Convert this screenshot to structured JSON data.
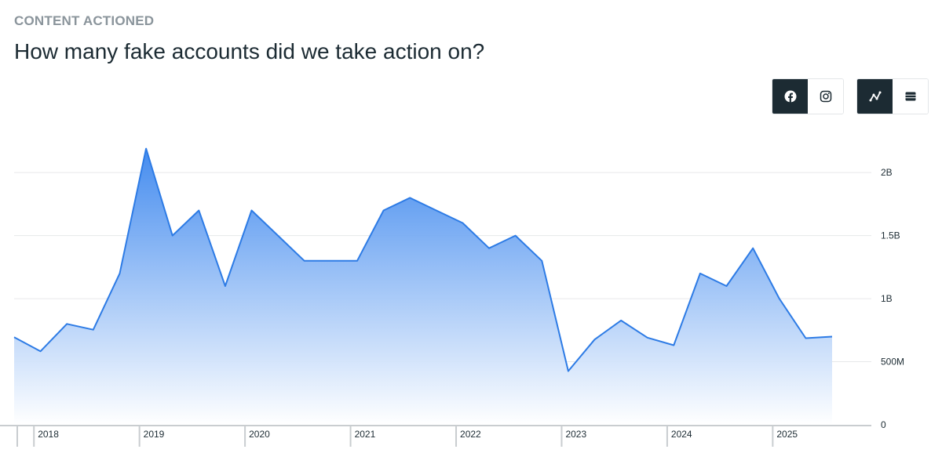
{
  "header": {
    "eyebrow": "CONTENT ACTIONED",
    "title": "How many fake accounts did we take action on?"
  },
  "controls": {
    "platform": [
      {
        "icon": "facebook-icon",
        "active": true
      },
      {
        "icon": "instagram-icon",
        "active": false
      }
    ],
    "view": [
      {
        "icon": "line-chart-icon",
        "active": true
      },
      {
        "icon": "table-icon",
        "active": false
      }
    ]
  },
  "colors": {
    "line": "#2d7be5",
    "fill_top": "#3b86ee",
    "fill_bottom": "#ffffff",
    "active_button": "#1c2b33",
    "grid": "#e6e8ea"
  },
  "chart_data": {
    "type": "area",
    "title": "",
    "xlabel": "",
    "ylabel": "",
    "x": [
      "2017 Q4",
      "2018 Q1",
      "2018 Q2",
      "2018 Q3",
      "2018 Q4",
      "2019 Q1",
      "2019 Q2",
      "2019 Q3",
      "2019 Q4",
      "2020 Q1",
      "2020 Q2",
      "2020 Q3",
      "2020 Q4",
      "2021 Q1",
      "2021 Q2",
      "2021 Q3",
      "2021 Q4",
      "2022 Q1",
      "2022 Q2",
      "2022 Q3",
      "2022 Q4",
      "2023 Q1",
      "2023 Q2",
      "2023 Q3",
      "2023 Q4",
      "2024 Q1",
      "2024 Q2",
      "2024 Q3",
      "2024 Q4",
      "2025 Q1",
      "2025 Q2",
      "2025 Q3"
    ],
    "series": [
      {
        "values": [
          694000000,
          583000000,
          800000000,
          754000000,
          1200000000,
          2190000000,
          1500000000,
          1700000000,
          1100000000,
          1700000000,
          1500000000,
          1300000000,
          1300000000,
          1300000000,
          1700000000,
          1800000000,
          1700000000,
          1600000000,
          1400000000,
          1500000000,
          1300000000,
          426000000,
          676000000,
          827000000,
          691000000,
          631000000,
          1200000000,
          1100000000,
          1400000000,
          1000000000,
          687000000,
          699000000
        ]
      }
    ],
    "ylim": [
      0,
      2200000000
    ],
    "yticks": [
      {
        "value": 0,
        "label": "0"
      },
      {
        "value": 500000000,
        "label": "500M"
      },
      {
        "value": 1000000000,
        "label": "1B"
      },
      {
        "value": 1500000000,
        "label": "1.5B"
      },
      {
        "value": 2000000000,
        "label": "2B"
      }
    ],
    "xticks": [
      {
        "label": "2018",
        "start_index": 1
      },
      {
        "label": "2019",
        "start_index": 5
      },
      {
        "label": "2020",
        "start_index": 9
      },
      {
        "label": "2021",
        "start_index": 13
      },
      {
        "label": "2022",
        "start_index": 17
      },
      {
        "label": "2023",
        "start_index": 21
      },
      {
        "label": "2024",
        "start_index": 25
      },
      {
        "label": "2025",
        "start_index": 29
      }
    ],
    "grid": true,
    "legend": "none"
  }
}
